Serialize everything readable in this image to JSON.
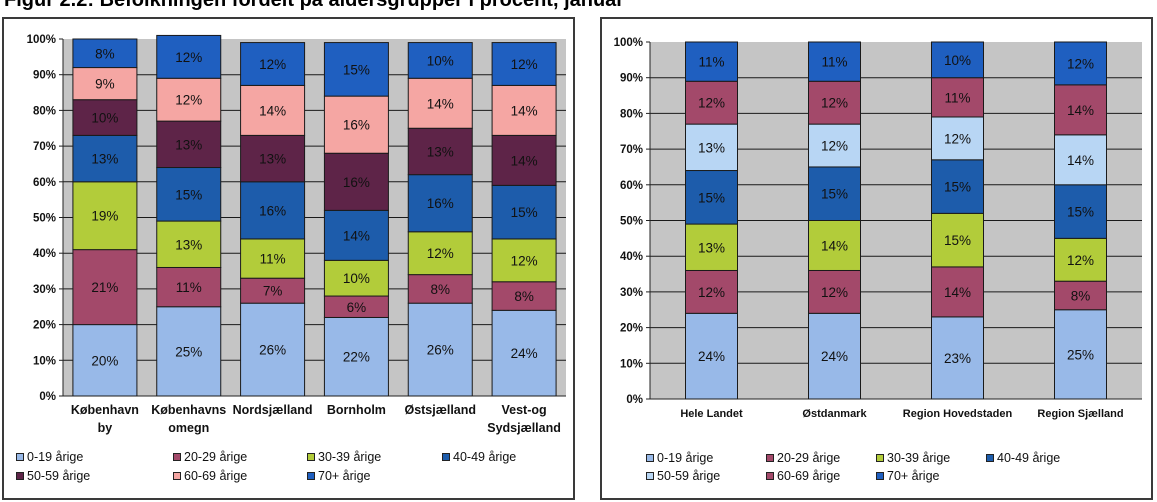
{
  "header": {
    "title": "Figur 2.2: Befolkningen fordelt på aldersgrupper i procent, januar"
  },
  "colors": {
    "0-19": "#98B9E8",
    "20-29": "#A3496A",
    "30-39": "#B2CC3A",
    "40-49": "#1D5CAB",
    "50-59": "#5E2448",
    "60-69": "#F5A6A3",
    "70+": "#1F5FC0",
    "50-59-right": "#B8D6F4",
    "60-69-right": "#A3496A"
  },
  "chart_data": [
    {
      "type": "bar",
      "stacked": true,
      "ylim": [
        0,
        100
      ],
      "yticks": [
        "0%",
        "10%",
        "20%",
        "30%",
        "40%",
        "50%",
        "60%",
        "70%",
        "80%",
        "90%",
        "100%"
      ],
      "grid": true,
      "legend_position": "bottom",
      "categories": [
        [
          "København",
          "by"
        ],
        [
          "Københavns",
          "omegn"
        ],
        [
          "Nordsjælland"
        ],
        [
          "Bornholm"
        ],
        [
          "Østsjælland"
        ],
        [
          "Vest-og",
          "Sydsjælland"
        ]
      ],
      "series": [
        {
          "name": "0-19 årige",
          "color_key": "0-19",
          "values": [
            20,
            25,
            26,
            22,
            26,
            24
          ]
        },
        {
          "name": "20-29 årige",
          "color_key": "20-29",
          "values": [
            21,
            11,
            7,
            6,
            8,
            8
          ]
        },
        {
          "name": "30-39 årige",
          "color_key": "30-39",
          "values": [
            19,
            13,
            11,
            10,
            12,
            12
          ]
        },
        {
          "name": "40-49 årige",
          "color_key": "40-49",
          "values": [
            13,
            15,
            16,
            14,
            16,
            15
          ]
        },
        {
          "name": "50-59 årige",
          "color_key": "50-59",
          "values": [
            10,
            13,
            13,
            16,
            13,
            14
          ]
        },
        {
          "name": "60-69 årige",
          "color_key": "60-69",
          "values": [
            9,
            12,
            14,
            16,
            14,
            14
          ]
        },
        {
          "name": "70+ årige",
          "color_key": "70+",
          "values": [
            8,
            12,
            12,
            15,
            10,
            12
          ]
        }
      ],
      "legend_rows": [
        [
          "0-19 årige",
          "20-29 årige",
          "30-39 årige",
          "40-49 årige"
        ],
        [
          "50-59 årige",
          "60-69 årige",
          "70+ årige"
        ]
      ]
    },
    {
      "type": "bar",
      "stacked": true,
      "ylim": [
        0,
        100
      ],
      "yticks": [
        "0%",
        "10%",
        "20%",
        "30%",
        "40%",
        "50%",
        "60%",
        "70%",
        "80%",
        "90%",
        "100%"
      ],
      "grid": true,
      "legend_position": "bottom",
      "categories": [
        [
          "Hele Landet"
        ],
        [
          "Østdanmark"
        ],
        [
          "Region Hovedstaden"
        ],
        [
          "Region Sjælland"
        ]
      ],
      "series": [
        {
          "name": "0-19 årige",
          "color_key": "0-19",
          "values": [
            24,
            24,
            23,
            25
          ]
        },
        {
          "name": "20-29 årige",
          "color_key": "20-29",
          "values": [
            12,
            12,
            14,
            8
          ]
        },
        {
          "name": "30-39 årige",
          "color_key": "30-39",
          "values": [
            13,
            14,
            15,
            12
          ]
        },
        {
          "name": "40-49 årige",
          "color_key": "40-49",
          "values": [
            15,
            15,
            15,
            15
          ]
        },
        {
          "name": "50-59 årige",
          "color_key": "50-59-right",
          "values": [
            13,
            12,
            12,
            14
          ]
        },
        {
          "name": "60-69 årige",
          "color_key": "60-69-right",
          "values": [
            12,
            12,
            11,
            14
          ]
        },
        {
          "name": "70+ årige",
          "color_key": "70+",
          "values": [
            11,
            11,
            10,
            12
          ]
        }
      ],
      "legend_rows": [
        [
          "0-19 årige",
          "20-29 årige",
          "30-39 årige",
          "40-49 årige"
        ],
        [
          "50-59 årige",
          "60-69 årige",
          "70+ årige"
        ]
      ]
    }
  ]
}
